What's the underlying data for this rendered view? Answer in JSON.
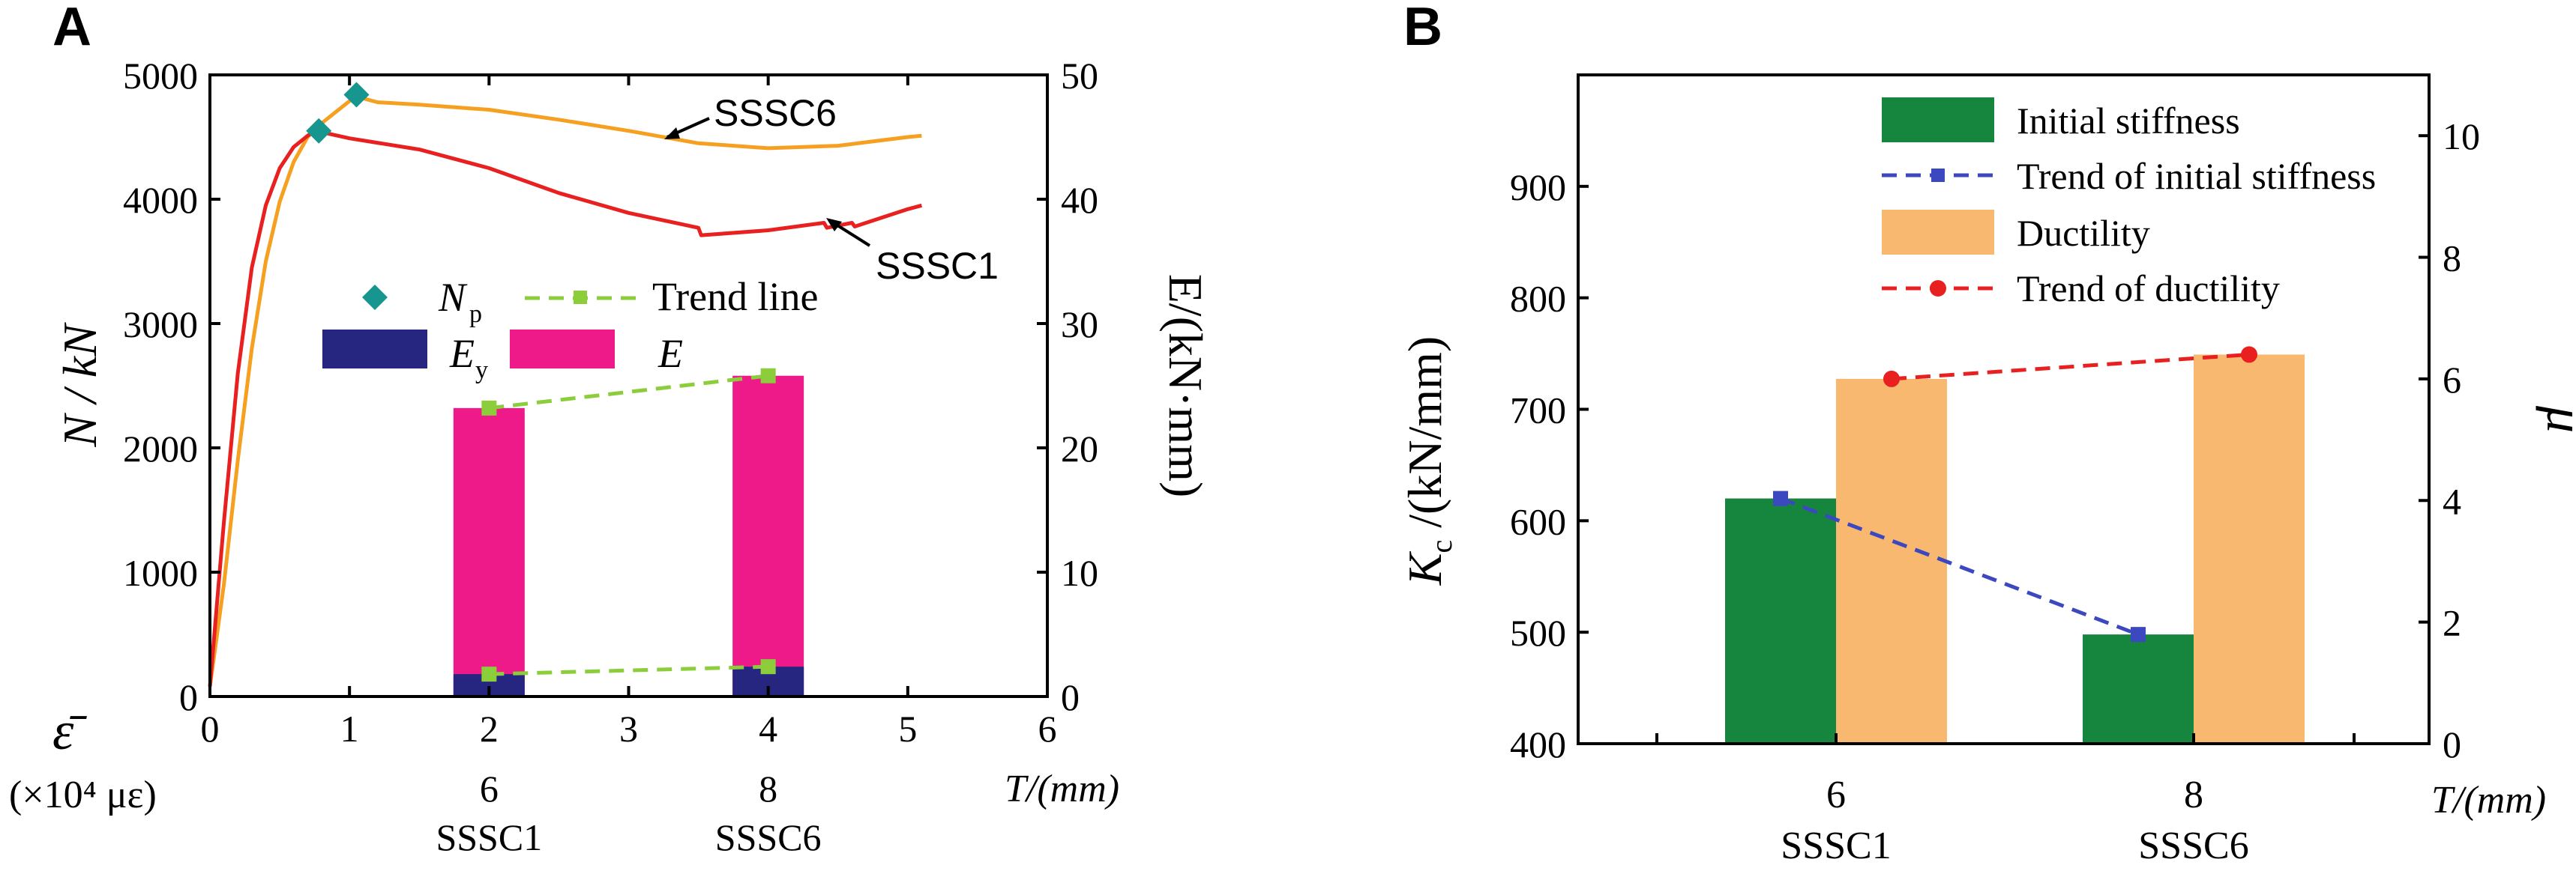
{
  "colors": {
    "orange": "#f5a020",
    "red": "#e82020",
    "teal": "#16968e",
    "navy": "#262680",
    "magenta": "#ee1a8a",
    "trend_green": "#8ccd3c",
    "green": "#16863e",
    "peach": "#f9b870",
    "blue_dash": "#3c48c0",
    "red_dash": "#e82020"
  },
  "chart_data": [
    {
      "panel_label": "A",
      "type": "line+bar",
      "ylabel_left": "N / kN",
      "ylabel_right": "E/(kN·mm)",
      "ylim_left": [
        0,
        5000
      ],
      "ylim_right": [
        0,
        50
      ],
      "xlim": [
        0,
        6
      ],
      "x_ticks": [
        "0",
        "1",
        "2",
        "3",
        "4",
        "5",
        "6"
      ],
      "y_ticks_left": [
        "0",
        "1000",
        "2000",
        "3000",
        "4000",
        "5000"
      ],
      "y_ticks_right": [
        "0",
        "10",
        "20",
        "30",
        "40",
        "50"
      ],
      "strain_symbol": "ε̄",
      "strain_unit": "(×10⁴ με)",
      "t_axis_label": "T/(mm)",
      "t_values": [
        {
          "x": 2,
          "t": "6",
          "specimen": "SSSC1"
        },
        {
          "x": 4,
          "t": "8",
          "specimen": "SSSC6"
        }
      ],
      "curves": [
        {
          "name": "SSSC6",
          "color": "orange",
          "points": [
            [
              0,
              80
            ],
            [
              0.1,
              900
            ],
            [
              0.2,
              1900
            ],
            [
              0.3,
              2800
            ],
            [
              0.4,
              3500
            ],
            [
              0.5,
              3980
            ],
            [
              0.6,
              4300
            ],
            [
              0.7,
              4500
            ],
            [
              0.8,
              4610
            ],
            [
              0.9,
              4700
            ],
            [
              1.0,
              4790
            ],
            [
              1.05,
              4840
            ],
            [
              1.1,
              4810
            ],
            [
              1.2,
              4780
            ],
            [
              1.5,
              4760
            ],
            [
              2.0,
              4720
            ],
            [
              2.5,
              4640
            ],
            [
              3.0,
              4550
            ],
            [
              3.5,
              4450
            ],
            [
              4.0,
              4410
            ],
            [
              4.5,
              4430
            ],
            [
              5.0,
              4500
            ],
            [
              5.1,
              4510
            ]
          ]
        },
        {
          "name": "SSSC1",
          "color": "red",
          "points": [
            [
              0,
              80
            ],
            [
              0.1,
              1400
            ],
            [
              0.2,
              2600
            ],
            [
              0.3,
              3450
            ],
            [
              0.4,
              3950
            ],
            [
              0.5,
              4250
            ],
            [
              0.6,
              4420
            ],
            [
              0.7,
              4510
            ],
            [
              0.75,
              4550
            ],
            [
              0.8,
              4540
            ],
            [
              1.0,
              4490
            ],
            [
              1.5,
              4400
            ],
            [
              2.0,
              4250
            ],
            [
              2.5,
              4050
            ],
            [
              3.0,
              3890
            ],
            [
              3.5,
              3770
            ],
            [
              3.52,
              3710
            ],
            [
              4.0,
              3750
            ],
            [
              4.4,
              3810
            ],
            [
              4.42,
              3770
            ],
            [
              4.6,
              3810
            ],
            [
              4.62,
              3780
            ],
            [
              5.0,
              3920
            ],
            [
              5.1,
              3950
            ]
          ]
        }
      ],
      "peak_points": {
        "label": "Np",
        "values": [
          [
            0.78,
            4550
          ],
          [
            1.05,
            4840
          ]
        ]
      },
      "bars": [
        {
          "x": 2,
          "Ey": 1.8,
          "E": 23.2
        },
        {
          "x": 4,
          "Ey": 2.4,
          "E": 25.8
        }
      ],
      "legend": {
        "np": "N",
        "np_sub": "p",
        "trend": "Trend line",
        "ey": "E",
        "ey_sub": "y",
        "e": "E"
      },
      "annotations": {
        "sssc6": "SSSC6",
        "sssc1": "SSSC1"
      }
    },
    {
      "panel_label": "B",
      "type": "bar+line",
      "ylabel_left": "Kc /(kN/mm)",
      "ylabel_right": "μ",
      "ylim_left": [
        400,
        1000
      ],
      "ylim_right": [
        0,
        11
      ],
      "y_ticks_left": [
        "400",
        "500",
        "600",
        "700",
        "800",
        "900"
      ],
      "y_ticks_right": [
        "0",
        "2",
        "4",
        "6",
        "8",
        "10"
      ],
      "categories": [
        {
          "t": "6",
          "specimen": "SSSC1"
        },
        {
          "t": "8",
          "specimen": "SSSC6"
        }
      ],
      "t_axis_label": "T/(mm)",
      "series": [
        {
          "name": "Initial stiffness",
          "type": "bar",
          "color": "green",
          "values": [
            620,
            498
          ]
        },
        {
          "name": "Trend of initial stiffness",
          "type": "line",
          "color": "blue_dash",
          "values": [
            620,
            498
          ]
        },
        {
          "name": "Ductility",
          "type": "bar",
          "color": "peach",
          "values": [
            6.0,
            6.4
          ]
        },
        {
          "name": "Trend of ductility",
          "type": "line",
          "color": "red_dash",
          "values": [
            6.0,
            6.4
          ]
        }
      ]
    }
  ]
}
